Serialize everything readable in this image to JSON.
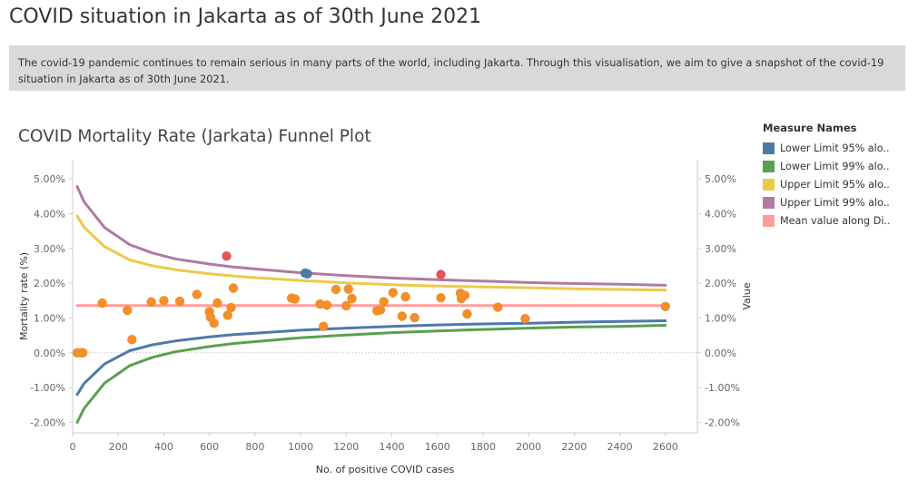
{
  "page": {
    "title": "COVID situation in Jakarta as of 30th June 2021",
    "description": "The covid-19 pandemic continues to remain serious in many parts of the world, including Jakarta. Through this visualisation, we aim to give a snapshot of the covid-19 situation in Jakarta as of 30th June 2021."
  },
  "legend": {
    "title": "Measure Names",
    "items": [
      {
        "label": "Lower Limit 95% alo..",
        "color": "#4e79a7"
      },
      {
        "label": "Lower Limit 99% alo..",
        "color": "#59a14f"
      },
      {
        "label": "Upper Limit 95% alo..",
        "color": "#edc948"
      },
      {
        "label": "Upper Limit  99% alo..",
        "color": "#b07aa1"
      },
      {
        "label": "Mean value along Di..",
        "color": "#ff9d9a"
      }
    ]
  },
  "chart_data": {
    "type": "scatter",
    "title": "COVID Mortality Rate (Jarkata) Funnel Plot",
    "xlabel": "No. of positive COVID cases",
    "ylabel": "Mortality rate (%)",
    "ylabel_right": "Value",
    "xlim": [
      0,
      2740
    ],
    "ylim": [
      -0.023,
      0.0555
    ],
    "x_ticks": [
      0,
      200,
      400,
      600,
      800,
      1000,
      1200,
      1400,
      1600,
      1800,
      2000,
      2200,
      2400,
      2600
    ],
    "y_ticks": [
      -0.02,
      -0.01,
      0.0,
      0.01,
      0.02,
      0.03,
      0.04,
      0.05
    ],
    "y_tick_labels": [
      "-2.00%",
      "-1.00%",
      "0.00%",
      "1.00%",
      "2.00%",
      "3.00%",
      "4.00%",
      "5.00%"
    ],
    "mean": 0.0136,
    "series": [
      {
        "name": "Lower Limit 95% alo..",
        "color": "#4e79a7",
        "x": [
          20,
          50,
          140,
          250,
          350,
          450,
          600,
          700,
          800,
          1000,
          1200,
          1400,
          1600,
          1800,
          2000,
          2200,
          2400,
          2600
        ],
        "y": [
          -0.012,
          -0.0088,
          -0.0032,
          0.0006,
          0.0023,
          0.0034,
          0.0046,
          0.0052,
          0.0056,
          0.0065,
          0.0071,
          0.0076,
          0.008,
          0.0083,
          0.0085,
          0.0088,
          0.009,
          0.0092
        ]
      },
      {
        "name": "Lower Limit 99% alo..",
        "color": "#59a14f",
        "x": [
          20,
          50,
          140,
          250,
          350,
          450,
          600,
          700,
          800,
          1000,
          1200,
          1400,
          1600,
          1800,
          2000,
          2200,
          2400,
          2600
        ],
        "y": [
          -0.02,
          -0.016,
          -0.0087,
          -0.0037,
          -0.0013,
          0.0003,
          0.0018,
          0.0026,
          0.0032,
          0.0043,
          0.0051,
          0.0058,
          0.0063,
          0.0067,
          0.0071,
          0.0074,
          0.0076,
          0.0079
        ]
      },
      {
        "name": "Upper Limit 95% alo..",
        "color": "#edc948",
        "x": [
          20,
          50,
          140,
          250,
          350,
          450,
          600,
          700,
          800,
          1000,
          1200,
          1400,
          1600,
          1800,
          2000,
          2200,
          2400,
          2600
        ],
        "y": [
          0.0393,
          0.0361,
          0.0305,
          0.0267,
          0.025,
          0.0239,
          0.0227,
          0.0221,
          0.0216,
          0.0208,
          0.0201,
          0.0196,
          0.0192,
          0.0189,
          0.0187,
          0.0184,
          0.0182,
          0.018
        ]
      },
      {
        "name": "Upper Limit  99% alo..",
        "color": "#b07aa1",
        "x": [
          20,
          50,
          140,
          250,
          350,
          450,
          600,
          700,
          800,
          1000,
          1200,
          1400,
          1600,
          1800,
          2000,
          2200,
          2400,
          2600
        ],
        "y": [
          0.0478,
          0.0434,
          0.036,
          0.0311,
          0.0287,
          0.027,
          0.0255,
          0.0247,
          0.0241,
          0.023,
          0.0222,
          0.0215,
          0.021,
          0.0206,
          0.0202,
          0.0199,
          0.0197,
          0.0194
        ]
      },
      {
        "name": "Mean value along Di..",
        "color": "#ff9d9a",
        "x": [
          20,
          2600
        ],
        "y": [
          0.0136,
          0.0136
        ]
      }
    ],
    "points": [
      {
        "x": 20,
        "y": 0.0,
        "c": "orange"
      },
      {
        "x": 35,
        "y": 0.0,
        "c": "orange"
      },
      {
        "x": 45,
        "y": 0.0,
        "c": "orange"
      },
      {
        "x": 130,
        "y": 0.0143,
        "c": "orange"
      },
      {
        "x": 240,
        "y": 0.0122,
        "c": "orange"
      },
      {
        "x": 260,
        "y": 0.0038,
        "c": "orange"
      },
      {
        "x": 345,
        "y": 0.0146,
        "c": "orange"
      },
      {
        "x": 400,
        "y": 0.015,
        "c": "orange"
      },
      {
        "x": 470,
        "y": 0.0148,
        "c": "orange"
      },
      {
        "x": 545,
        "y": 0.0168,
        "c": "orange"
      },
      {
        "x": 600,
        "y": 0.0118,
        "c": "orange"
      },
      {
        "x": 605,
        "y": 0.0102,
        "c": "orange"
      },
      {
        "x": 620,
        "y": 0.0085,
        "c": "orange"
      },
      {
        "x": 635,
        "y": 0.0143,
        "c": "orange"
      },
      {
        "x": 680,
        "y": 0.0108,
        "c": "orange"
      },
      {
        "x": 695,
        "y": 0.013,
        "c": "orange"
      },
      {
        "x": 705,
        "y": 0.0186,
        "c": "orange"
      },
      {
        "x": 960,
        "y": 0.0157,
        "c": "orange"
      },
      {
        "x": 975,
        "y": 0.0155,
        "c": "orange"
      },
      {
        "x": 1085,
        "y": 0.014,
        "c": "orange"
      },
      {
        "x": 1100,
        "y": 0.0076,
        "c": "orange"
      },
      {
        "x": 1115,
        "y": 0.0137,
        "c": "orange"
      },
      {
        "x": 1155,
        "y": 0.0182,
        "c": "orange"
      },
      {
        "x": 1200,
        "y": 0.0135,
        "c": "orange"
      },
      {
        "x": 1210,
        "y": 0.0183,
        "c": "orange"
      },
      {
        "x": 1225,
        "y": 0.0156,
        "c": "orange"
      },
      {
        "x": 1335,
        "y": 0.0121,
        "c": "orange"
      },
      {
        "x": 1350,
        "y": 0.0123,
        "c": "orange"
      },
      {
        "x": 1365,
        "y": 0.0147,
        "c": "orange"
      },
      {
        "x": 1405,
        "y": 0.0173,
        "c": "orange"
      },
      {
        "x": 1445,
        "y": 0.0105,
        "c": "orange"
      },
      {
        "x": 1460,
        "y": 0.0161,
        "c": "orange"
      },
      {
        "x": 1500,
        "y": 0.0101,
        "c": "orange"
      },
      {
        "x": 1615,
        "y": 0.0158,
        "c": "orange"
      },
      {
        "x": 1700,
        "y": 0.0171,
        "c": "orange"
      },
      {
        "x": 1705,
        "y": 0.0156,
        "c": "orange"
      },
      {
        "x": 1720,
        "y": 0.0165,
        "c": "orange"
      },
      {
        "x": 1730,
        "y": 0.0112,
        "c": "orange"
      },
      {
        "x": 1865,
        "y": 0.0131,
        "c": "orange"
      },
      {
        "x": 1985,
        "y": 0.0098,
        "c": "orange"
      },
      {
        "x": 2600,
        "y": 0.0133,
        "c": "orange"
      },
      {
        "x": 675,
        "y": 0.0278,
        "c": "red"
      },
      {
        "x": 1615,
        "y": 0.0225,
        "c": "red"
      },
      {
        "x": 1020,
        "y": 0.0229,
        "c": "blue"
      },
      {
        "x": 1030,
        "y": 0.0227,
        "c": "blue"
      }
    ],
    "point_colors": {
      "orange": "#f28e2b",
      "red": "#e15759",
      "blue": "#4e79a7"
    }
  }
}
